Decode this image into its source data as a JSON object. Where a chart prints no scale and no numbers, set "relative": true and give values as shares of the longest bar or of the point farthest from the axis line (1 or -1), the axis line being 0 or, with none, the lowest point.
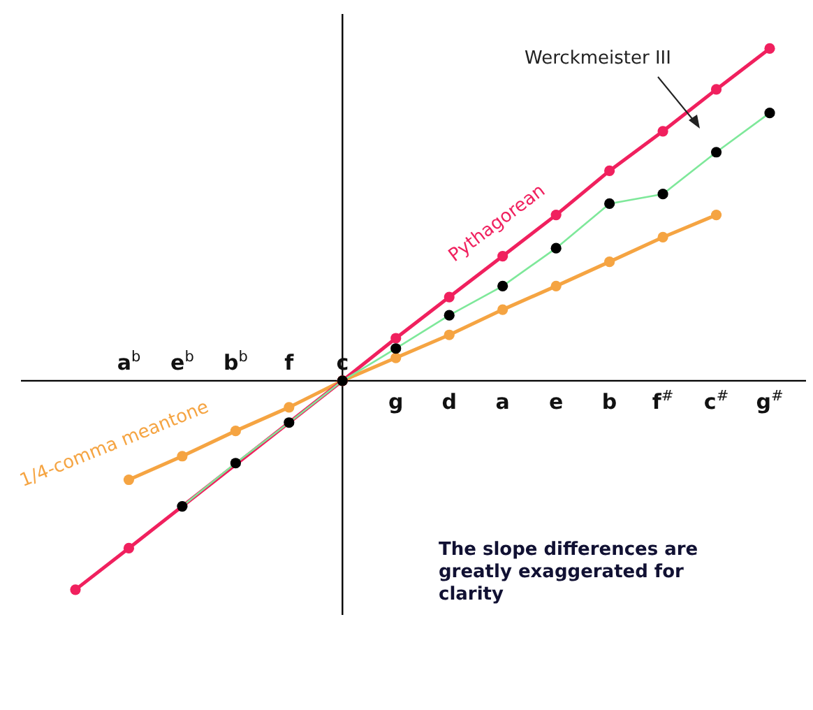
{
  "chart_data": {
    "type": "line",
    "relative": true,
    "marker": "circle",
    "line_style": "solid",
    "categories": [
      null,
      "a$^{b}$",
      "e$^{b}$",
      "b$^{b}$",
      "f",
      "c",
      "g",
      "d",
      "a",
      "e",
      "b",
      "f$^{#}$",
      "c$^{#}$",
      "g$^{#}$"
    ],
    "series": [
      {
        "name": "1/4-comma meantone",
        "color": "#f5a442",
        "values": [
          null,
          -0.298,
          -0.227,
          -0.151,
          -0.08,
          0,
          0.069,
          0.138,
          0.214,
          0.285,
          0.358,
          0.432,
          0.499,
          null
        ]
      },
      {
        "name": "Pythagorean",
        "color": "#f0205e",
        "values": [
          -0.629,
          -0.504,
          null,
          null,
          null,
          0,
          0.128,
          0.252,
          0.375,
          0.499,
          0.632,
          0.751,
          0.877,
          1
        ]
      },
      {
        "name": "Werckmeister III",
        "color": "#7ee89a",
        "colors": [
          null,
          null,
          "#000000",
          "#000000",
          "#000000",
          "#000000",
          "#000000",
          "#000000",
          "#000000",
          "#000000",
          "#000000",
          "#000000",
          "#000000",
          "#000000"
        ],
        "values": [
          null,
          null,
          -0.378,
          -0.248,
          -0.126,
          0,
          0.097,
          0.197,
          0.285,
          0.399,
          0.533,
          0.562,
          0.688,
          0.806
        ]
      }
    ],
    "ref_lines": [
      {
        "axis": "x",
        "value": "c"
      }
    ],
    "annotations": [
      "The slope differences are greatly exaggerated for clarity"
    ]
  }
}
